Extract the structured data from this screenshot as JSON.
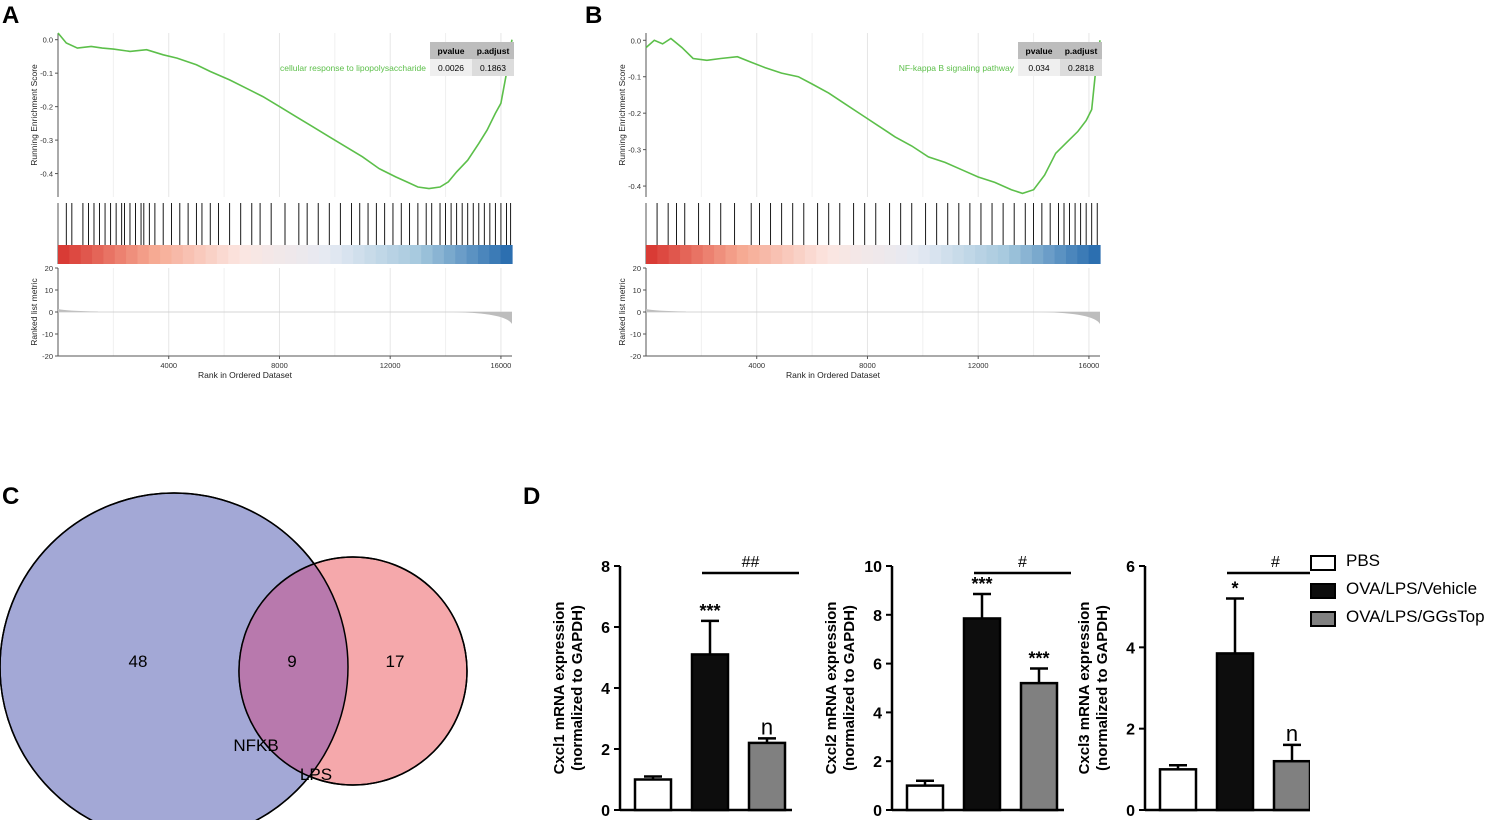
{
  "panels": {
    "A": "A",
    "B": "B",
    "C": "C",
    "D": "D"
  },
  "gsea": [
    {
      "id": "A",
      "pathway": "cellular response to lipopolysaccharide",
      "table": {
        "headers": [
          "pvalue",
          "p.adjust"
        ],
        "values": [
          "0.0026",
          "0.1863"
        ]
      },
      "ylabel_es": "Running Enrichment Score",
      "ylabel_rank": "Ranked list metric",
      "xlabel": "Rank in Ordered Dataset",
      "es_ticks": [
        "0.0",
        "-0.1",
        "-0.2",
        "-0.3",
        "-0.4"
      ],
      "rank_ticks": [
        "20",
        "10",
        "0",
        "-10",
        "-20"
      ],
      "x_ticks": [
        "4000",
        "8000",
        "12000",
        "16000"
      ],
      "xlim": [
        0,
        16400
      ],
      "ylim": [
        -0.47,
        0.02
      ],
      "colors": {
        "curve": "#5cbf4a",
        "high": "#d93b35",
        "low": "#2c6fb0"
      },
      "curve": [
        [
          0,
          0.02
        ],
        [
          300,
          -0.01
        ],
        [
          700,
          -0.025
        ],
        [
          1200,
          -0.02
        ],
        [
          1600,
          -0.025
        ],
        [
          2000,
          -0.028
        ],
        [
          2600,
          -0.035
        ],
        [
          3200,
          -0.03
        ],
        [
          3800,
          -0.045
        ],
        [
          4300,
          -0.055
        ],
        [
          5000,
          -0.075
        ],
        [
          5500,
          -0.095
        ],
        [
          6200,
          -0.12
        ],
        [
          6800,
          -0.145
        ],
        [
          7400,
          -0.17
        ],
        [
          8000,
          -0.2
        ],
        [
          8600,
          -0.23
        ],
        [
          9200,
          -0.26
        ],
        [
          9800,
          -0.29
        ],
        [
          10400,
          -0.32
        ],
        [
          11000,
          -0.35
        ],
        [
          11600,
          -0.385
        ],
        [
          12200,
          -0.41
        ],
        [
          12600,
          -0.425
        ],
        [
          13000,
          -0.44
        ],
        [
          13400,
          -0.445
        ],
        [
          13800,
          -0.44
        ],
        [
          14100,
          -0.425
        ],
        [
          14400,
          -0.395
        ],
        [
          14800,
          -0.36
        ],
        [
          15200,
          -0.31
        ],
        [
          15500,
          -0.27
        ],
        [
          15800,
          -0.22
        ],
        [
          16000,
          -0.19
        ],
        [
          16200,
          -0.1
        ],
        [
          16350,
          -0.02
        ],
        [
          16400,
          0.0
        ]
      ],
      "hits": [
        300,
        500,
        900,
        1100,
        1300,
        1500,
        1700,
        1900,
        2100,
        2300,
        2400,
        2600,
        2800,
        3000,
        3100,
        3300,
        3500,
        3800,
        4100,
        4400,
        4700,
        5000,
        5200,
        5500,
        5800,
        6200,
        6600,
        7000,
        7300,
        7700,
        8200,
        8700,
        9000,
        9400,
        9800,
        10200,
        10600,
        10900,
        11200,
        11500,
        11800,
        12100,
        12400,
        12700,
        13000,
        13300,
        13500,
        13800,
        14000,
        14200,
        14400,
        14600,
        14800,
        15000,
        15200,
        15400,
        15600,
        15800,
        16000,
        16200,
        16350
      ]
    },
    {
      "id": "B",
      "pathway": "NF-kappa B signaling pathway",
      "table": {
        "headers": [
          "pvalue",
          "p.adjust"
        ],
        "values": [
          "0.034",
          "0.2818"
        ]
      },
      "ylabel_es": "Running Enrichment Score",
      "ylabel_rank": "Ranked list metric",
      "xlabel": "Rank in Ordered Dataset",
      "es_ticks": [
        "0.0",
        "-0.1",
        "-0.2",
        "-0.3",
        "-0.4"
      ],
      "rank_ticks": [
        "20",
        "10",
        "0",
        "-10",
        "-20"
      ],
      "x_ticks": [
        "4000",
        "8000",
        "12000",
        "16000"
      ],
      "xlim": [
        0,
        16400
      ],
      "ylim": [
        -0.43,
        0.02
      ],
      "colors": {
        "curve": "#5cbf4a",
        "high": "#d93b35",
        "low": "#2c6fb0"
      },
      "curve": [
        [
          0,
          -0.02
        ],
        [
          300,
          0.0
        ],
        [
          600,
          -0.01
        ],
        [
          900,
          0.005
        ],
        [
          1300,
          -0.02
        ],
        [
          1700,
          -0.05
        ],
        [
          2200,
          -0.055
        ],
        [
          2700,
          -0.05
        ],
        [
          3300,
          -0.045
        ],
        [
          3800,
          -0.06
        ],
        [
          4300,
          -0.075
        ],
        [
          4900,
          -0.09
        ],
        [
          5500,
          -0.1
        ],
        [
          6000,
          -0.12
        ],
        [
          6600,
          -0.145
        ],
        [
          7200,
          -0.175
        ],
        [
          7800,
          -0.205
        ],
        [
          8400,
          -0.235
        ],
        [
          9000,
          -0.265
        ],
        [
          9600,
          -0.29
        ],
        [
          10200,
          -0.32
        ],
        [
          10800,
          -0.335
        ],
        [
          11400,
          -0.355
        ],
        [
          12000,
          -0.375
        ],
        [
          12600,
          -0.39
        ],
        [
          13200,
          -0.41
        ],
        [
          13600,
          -0.42
        ],
        [
          14000,
          -0.41
        ],
        [
          14400,
          -0.37
        ],
        [
          14800,
          -0.31
        ],
        [
          15200,
          -0.28
        ],
        [
          15600,
          -0.25
        ],
        [
          15900,
          -0.22
        ],
        [
          16100,
          -0.19
        ],
        [
          16250,
          -0.08
        ],
        [
          16400,
          0.0
        ]
      ],
      "hits": [
        400,
        800,
        1100,
        1400,
        1900,
        2300,
        2700,
        3200,
        3800,
        4100,
        4500,
        4900,
        5300,
        5700,
        6200,
        6600,
        7000,
        7500,
        7900,
        8300,
        8800,
        9200,
        9600,
        10100,
        10500,
        10900,
        11300,
        11700,
        12100,
        12500,
        12900,
        13300,
        13700,
        14000,
        14300,
        14600,
        14900,
        15100,
        15300,
        15500,
        15700,
        15900,
        16100,
        16300
      ]
    }
  ],
  "venn": {
    "sets": [
      {
        "name": "NFKB",
        "only": "48"
      },
      {
        "name": "LPS",
        "only": "17"
      }
    ],
    "overlap": "9",
    "colors": {
      "NFKB": "#a3a8d6",
      "LPS": "#f5a8ab",
      "overlap": "#b879ad"
    }
  },
  "chart_data": [
    {
      "type": "bar",
      "title": "",
      "categories": [
        "PBS",
        "OVA/LPS/Vehicle",
        "OVA/LPS/GGsTop"
      ],
      "ylabel": "Cxcl1 mRNA expression (normalized to GAPDH)",
      "ylabel_lines": [
        "Cxcl1 mRNA expression",
        "(normalized to GAPDH)"
      ],
      "ylim": [
        0,
        8
      ],
      "yticks": [
        "0",
        "2",
        "4",
        "6",
        "8"
      ],
      "values": [
        1.0,
        5.1,
        2.2
      ],
      "errors": [
        0.1,
        1.1,
        0.15
      ],
      "marks": [
        "",
        "***",
        "n"
      ],
      "comparison": {
        "label": "##",
        "from": 1,
        "to": 2
      }
    },
    {
      "type": "bar",
      "title": "",
      "categories": [
        "PBS",
        "OVA/LPS/Vehicle",
        "OVA/LPS/GGsTop"
      ],
      "ylabel": "Cxcl2 mRNA expression (normalized to GAPDH)",
      "ylabel_lines": [
        "Cxcl2 mRNA expression",
        "(normalized to GAPDH)"
      ],
      "ylim": [
        0,
        10
      ],
      "yticks": [
        "0",
        "2",
        "4",
        "6",
        "8",
        "10"
      ],
      "values": [
        1.0,
        7.85,
        5.2
      ],
      "errors": [
        0.2,
        1.0,
        0.6
      ],
      "marks": [
        "",
        "***",
        "***"
      ],
      "comparison": {
        "label": "#",
        "from": 1,
        "to": 2
      }
    },
    {
      "type": "bar",
      "title": "",
      "categories": [
        "PBS",
        "OVA/LPS/Vehicle",
        "OVA/LPS/GGsTop"
      ],
      "ylabel": "Cxcl3 mRNA expression (normalized to GAPDH)",
      "ylabel_lines": [
        "Cxcl3 mRNA expression",
        "(normalized to GAPDH)"
      ],
      "ylim": [
        0,
        6
      ],
      "yticks": [
        "0",
        "2",
        "4",
        "6"
      ],
      "values": [
        1.0,
        3.85,
        1.2
      ],
      "errors": [
        0.1,
        1.35,
        0.4
      ],
      "marks": [
        "",
        "*",
        "n"
      ],
      "comparison": {
        "label": "#",
        "from": 1,
        "to": 2
      }
    }
  ],
  "legend": [
    {
      "label": "PBS",
      "color": "#ffffff"
    },
    {
      "label": "OVA/LPS/Vehicle",
      "color": "#0d0d0d"
    },
    {
      "label": "OVA/LPS/GGsTop",
      "color": "#808080"
    }
  ]
}
